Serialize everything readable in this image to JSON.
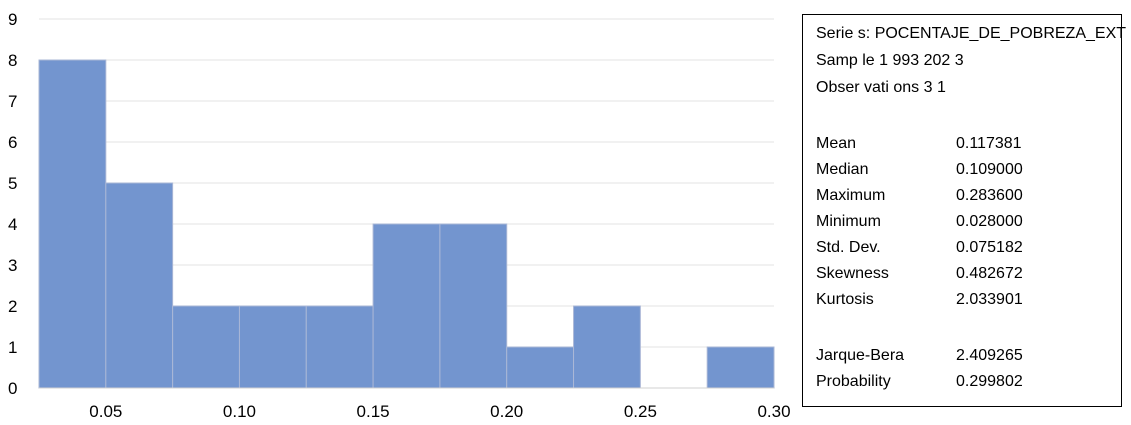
{
  "chart_data": {
    "type": "bar",
    "bins": [
      {
        "from": 0.025,
        "to": 0.05,
        "count": 8
      },
      {
        "from": 0.05,
        "to": 0.075,
        "count": 5
      },
      {
        "from": 0.075,
        "to": 0.1,
        "count": 2
      },
      {
        "from": 0.1,
        "to": 0.125,
        "count": 2
      },
      {
        "from": 0.125,
        "to": 0.15,
        "count": 2
      },
      {
        "from": 0.15,
        "to": 0.175,
        "count": 4
      },
      {
        "from": 0.175,
        "to": 0.2,
        "count": 4
      },
      {
        "from": 0.2,
        "to": 0.225,
        "count": 1
      },
      {
        "from": 0.225,
        "to": 0.25,
        "count": 2
      },
      {
        "from": 0.25,
        "to": 0.275,
        "count": 0
      },
      {
        "from": 0.275,
        "to": 0.3,
        "count": 1
      }
    ],
    "x_ticks": [
      "0.05",
      "0.10",
      "0.15",
      "0.20",
      "0.25",
      "0.30"
    ],
    "x_tick_values": [
      0.05,
      0.1,
      0.15,
      0.2,
      0.25,
      0.3
    ],
    "y_ticks": [
      "0",
      "1",
      "2",
      "3",
      "4",
      "5",
      "6",
      "7",
      "8",
      "9"
    ],
    "xlim": [
      0.025,
      0.3
    ],
    "ylim": [
      0,
      9
    ],
    "grid": true,
    "bar_color": "#7395cf",
    "bar_edge_color": "#aab7d6",
    "grid_color": "#e3e3e3"
  },
  "stats": {
    "header": {
      "series": "Serie s: POCENTAJE_DE_POBREZA_EXT",
      "sample": "Samp le 1 993 202 3",
      "observations": "Obser vati ons 3 1"
    },
    "rows": [
      {
        "label": "Mean",
        "value": "0.117381"
      },
      {
        "label": "Median",
        "value": "0.109000"
      },
      {
        "label": "Maximum",
        "value": "0.283600"
      },
      {
        "label": "Minimum",
        "value": "0.028000"
      },
      {
        "label": "Std. Dev.",
        "value": "0.075182"
      },
      {
        "label": "Skewness",
        "value": "0.482672"
      },
      {
        "label": "Kurtosis",
        "value": "2.033901"
      }
    ],
    "tests": [
      {
        "label": "Jarque-Bera",
        "value": "2.409265"
      },
      {
        "label": "Probability",
        "value": "0.299802"
      }
    ]
  }
}
